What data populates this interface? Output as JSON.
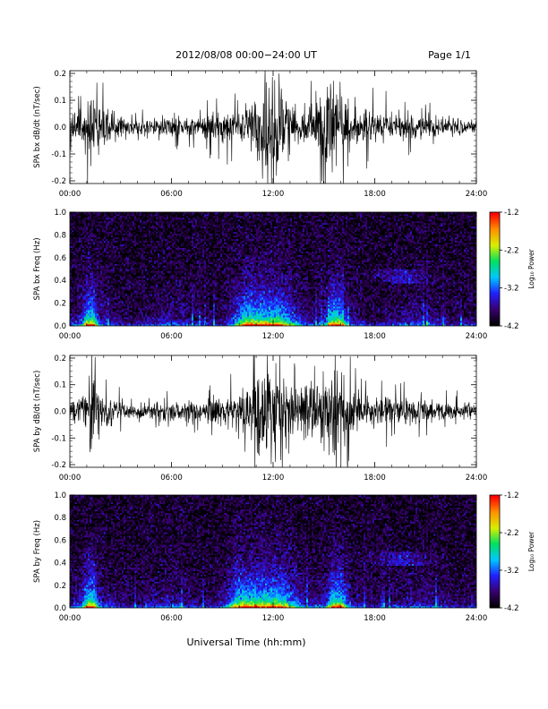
{
  "header": {
    "title": "2012/08/08   00:00−24:00 UT",
    "page": "Page 1/1"
  },
  "xlabel": "Universal Time (hh:mm)",
  "colorbar": {
    "label": "Log₁₀ Power",
    "ticks": [
      "-1.2",
      "-2.2",
      "-3.2",
      "-4.2"
    ],
    "range": [
      -4.2,
      -1.2
    ],
    "colors": [
      "#000000",
      "#3a0070",
      "#2020ff",
      "#00c8ff",
      "#00e060",
      "#d8f000",
      "#ff9000",
      "#ff0000"
    ]
  },
  "chart_data": [
    {
      "type": "line",
      "title": "",
      "ylabel": "SPA bx dB/dt (nT/sec)",
      "xlabel": "",
      "x_ticks": [
        "00:00",
        "06:00",
        "12:00",
        "18:00",
        "24:00"
      ],
      "y_ticks": [
        "0.2",
        "0.1",
        "0.0",
        "-0.1",
        "-0.2"
      ],
      "xlim": [
        0,
        24
      ],
      "ylim": [
        -0.21,
        0.21
      ],
      "series": [
        {
          "hours": [
            0,
            0.5,
            1,
            1.25,
            1.5,
            2,
            2.5,
            3,
            4,
            5,
            6,
            7,
            8,
            9,
            10,
            10.5,
            11,
            11.25,
            11.5,
            12,
            12.5,
            13,
            13.5,
            14,
            14.5,
            15,
            15.5,
            15.75,
            16,
            16.5,
            17,
            18,
            19,
            20,
            21,
            22,
            23,
            24
          ],
          "amplitude": [
            0.04,
            0.06,
            0.1,
            0.2,
            0.13,
            0.07,
            0.06,
            0.04,
            0.03,
            0.035,
            0.04,
            0.045,
            0.05,
            0.06,
            0.08,
            0.09,
            0.14,
            0.21,
            0.21,
            0.21,
            0.18,
            0.1,
            0.08,
            0.09,
            0.1,
            0.14,
            0.21,
            0.21,
            0.16,
            0.1,
            0.08,
            0.07,
            0.06,
            0.05,
            0.045,
            0.04,
            0.035,
            0.03
          ]
        }
      ]
    },
    {
      "type": "heatmap",
      "title": "",
      "ylabel": "SPA bx Freq (Hz)",
      "xlabel": "",
      "x_ticks": [
        "00:00",
        "06:00",
        "12:00",
        "18:00",
        "24:00"
      ],
      "y_ticks": [
        "1.0",
        "0.8",
        "0.6",
        "0.4",
        "0.2",
        "0.0"
      ],
      "xlim": [
        0,
        24
      ],
      "ylim": [
        0,
        1.0
      ],
      "zlim": [
        -4.2,
        -1.2
      ],
      "zlabel": "Log₁₀ Power",
      "enhancements": [
        {
          "center_hour": 1.2,
          "width": 0.4,
          "strength": 0.9
        },
        {
          "center_hour": 12.0,
          "width": 1.3,
          "strength": 1.0
        },
        {
          "center_hour": 15.7,
          "width": 0.5,
          "strength": 1.0
        },
        {
          "center_hour": 10.5,
          "width": 0.8,
          "strength": 0.6
        },
        {
          "center_hour": 19.5,
          "width": 1.5,
          "strength": 0.35,
          "band_hz": [
            0.38,
            0.5
          ]
        }
      ]
    },
    {
      "type": "line",
      "title": "",
      "ylabel": "SPA by dB/dt (nT/sec)",
      "xlabel": "",
      "x_ticks": [
        "00:00",
        "06:00",
        "12:00",
        "18:00",
        "24:00"
      ],
      "y_ticks": [
        "0.2",
        "0.1",
        "0.0",
        "-0.1",
        "-0.2"
      ],
      "xlim": [
        0,
        24
      ],
      "ylim": [
        -0.21,
        0.21
      ],
      "series": [
        {
          "hours": [
            0,
            0.5,
            1,
            1.25,
            1.5,
            2,
            2.5,
            3,
            4,
            5,
            6,
            7,
            8,
            9,
            10,
            10.5,
            11,
            11.25,
            11.5,
            12,
            12.5,
            13,
            13.5,
            14,
            14.5,
            15,
            15.5,
            15.75,
            16,
            16.5,
            17,
            18,
            19,
            20,
            21,
            22,
            23,
            24
          ],
          "amplitude": [
            0.04,
            0.06,
            0.1,
            0.18,
            0.12,
            0.07,
            0.06,
            0.04,
            0.03,
            0.035,
            0.04,
            0.045,
            0.05,
            0.06,
            0.08,
            0.1,
            0.15,
            0.21,
            0.21,
            0.21,
            0.17,
            0.1,
            0.09,
            0.1,
            0.11,
            0.15,
            0.21,
            0.21,
            0.15,
            0.1,
            0.08,
            0.07,
            0.06,
            0.05,
            0.045,
            0.04,
            0.035,
            0.03
          ]
        }
      ]
    },
    {
      "type": "heatmap",
      "title": "",
      "ylabel": "SPA by Freq (Hz)",
      "xlabel": "",
      "x_ticks": [
        "00:00",
        "06:00",
        "12:00",
        "18:00",
        "24:00"
      ],
      "y_ticks": [
        "1.0",
        "0.8",
        "0.6",
        "0.4",
        "0.2",
        "0.0"
      ],
      "xlim": [
        0,
        24
      ],
      "ylim": [
        0,
        1.0
      ],
      "zlim": [
        -4.2,
        -1.2
      ],
      "zlabel": "Log₁₀ Power",
      "enhancements": [
        {
          "center_hour": 1.2,
          "width": 0.4,
          "strength": 1.0
        },
        {
          "center_hour": 12.0,
          "width": 1.4,
          "strength": 1.0
        },
        {
          "center_hour": 15.8,
          "width": 0.5,
          "strength": 1.0
        },
        {
          "center_hour": 10.2,
          "width": 0.9,
          "strength": 0.7
        },
        {
          "center_hour": 19.5,
          "width": 1.6,
          "strength": 0.35,
          "band_hz": [
            0.38,
            0.5
          ]
        }
      ]
    }
  ]
}
